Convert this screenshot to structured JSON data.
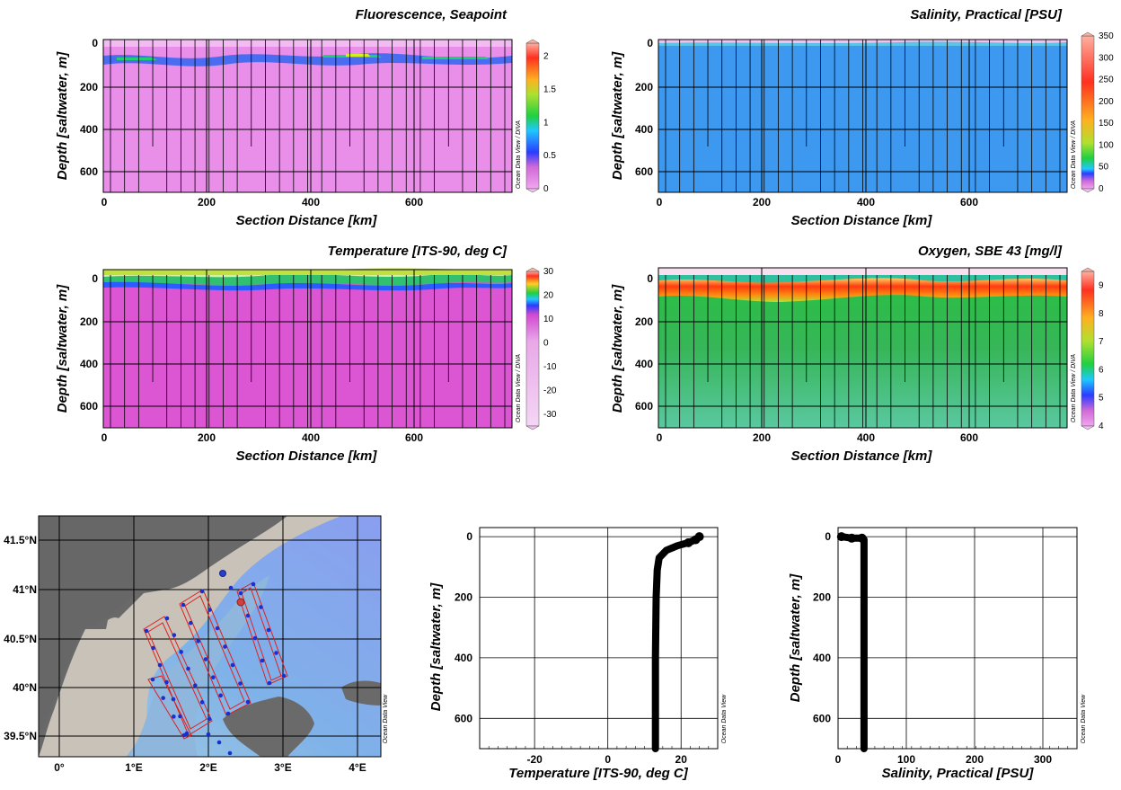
{
  "watermark_diva": "Ocean Data View / DIVA",
  "watermark_odv": "Ocean Data View",
  "sections": [
    {
      "id": "fluorescence",
      "title": "Fluorescence, Seapoint",
      "ylabel": "Depth [saltwater, m]",
      "xlabel": "Section Distance [km]",
      "xticks": [
        "0",
        "200",
        "400",
        "600"
      ],
      "yticks": [
        "0",
        "200",
        "400",
        "600"
      ],
      "colorbar_ticks": [
        "0",
        "0.5",
        "1",
        "1.5",
        "2"
      ],
      "colorbar_range": [
        0,
        2.2
      ],
      "fill": "#e98ee9"
    },
    {
      "id": "salinity",
      "title": "Salinity, Practical [PSU]",
      "ylabel": "Depth [saltwater, m]",
      "xlabel": "Section Distance [km]",
      "xticks": [
        "0",
        "200",
        "400",
        "600"
      ],
      "yticks": [
        "0",
        "200",
        "400",
        "600"
      ],
      "colorbar_ticks": [
        "0",
        "50",
        "100",
        "150",
        "200",
        "250",
        "300",
        "350"
      ],
      "colorbar_range": [
        0,
        350
      ],
      "fill": "#3d98f0"
    },
    {
      "id": "temperature",
      "title": "Temperature [ITS-90, deg C]",
      "ylabel": "Depth [saltwater, m]",
      "xlabel": "Section Distance [km]",
      "xticks": [
        "0",
        "200",
        "400",
        "600"
      ],
      "yticks": [
        "0",
        "200",
        "400",
        "600"
      ],
      "colorbar_ticks": [
        "-30",
        "-20",
        "-10",
        "0",
        "10",
        "20",
        "30"
      ],
      "colorbar_range": [
        -35,
        30
      ],
      "fill": "#dc55d2"
    },
    {
      "id": "oxygen",
      "title": "Oxygen, SBE 43 [mg/l]",
      "ylabel": "Depth [saltwater, m]",
      "xlabel": "Section Distance [km]",
      "xticks": [
        "0",
        "200",
        "400",
        "600"
      ],
      "yticks": [
        "0",
        "200",
        "400",
        "600"
      ],
      "colorbar_ticks": [
        "4",
        "5",
        "6",
        "7",
        "8",
        "9"
      ],
      "colorbar_range": [
        4,
        9.5
      ],
      "fill": "#2fb84c"
    }
  ],
  "map": {
    "lat_labels": [
      "41.5°N",
      "41°N",
      "40.5°N",
      "40°N",
      "39.5°N"
    ],
    "lon_labels": [
      "0°",
      "1°E",
      "2°E",
      "3°E",
      "4°E"
    ]
  },
  "chart_data": [
    {
      "type": "line",
      "title": "",
      "xlabel": "Temperature [ITS-90, deg C]",
      "ylabel": "Depth [saltwater, m]",
      "xlim": [
        -35,
        30
      ],
      "ylim": [
        700,
        -30
      ],
      "xticks": [
        "-20",
        "0",
        "20"
      ],
      "yticks": [
        "0",
        "200",
        "400",
        "600"
      ],
      "grid": true,
      "series": [
        {
          "x": [
            25,
            24,
            22,
            19,
            16,
            14,
            13.5,
            13.2,
            13.0,
            13.0,
            13.0
          ],
          "y": [
            0,
            10,
            20,
            30,
            45,
            70,
            110,
            200,
            400,
            600,
            700
          ]
        }
      ]
    },
    {
      "type": "line",
      "title": "",
      "xlabel": "Salinity, Practical [PSU]",
      "ylabel": "Depth [saltwater, m]",
      "xlim": [
        0,
        350
      ],
      "ylim": [
        700,
        -30
      ],
      "xticks": [
        "0",
        "100",
        "200",
        "300"
      ],
      "yticks": [
        "0",
        "200",
        "400",
        "600"
      ],
      "grid": true,
      "series": [
        {
          "x": [
            5,
            20,
            35,
            38,
            38,
            38,
            38,
            38
          ],
          "y": [
            0,
            5,
            5,
            10,
            100,
            300,
            500,
            700
          ]
        }
      ]
    }
  ]
}
